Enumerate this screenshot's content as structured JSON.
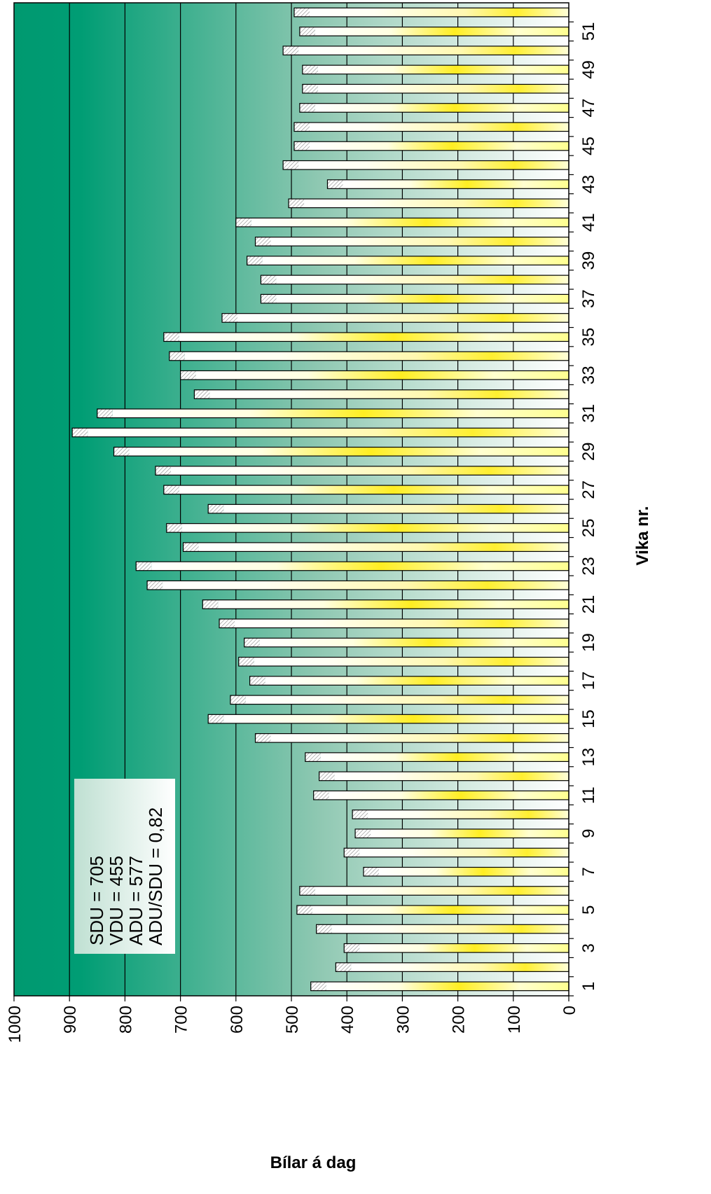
{
  "chart_data": {
    "type": "bar",
    "orientation": "horizontal",
    "xlabel": "Bílar á dag",
    "ylabel": "Vika nr.",
    "xlim": [
      0,
      1000
    ],
    "xticks": [
      "0",
      "100",
      "200",
      "300",
      "400",
      "500",
      "600",
      "700",
      "800",
      "900",
      "1000"
    ],
    "yticks": [
      "1",
      "3",
      "5",
      "7",
      "9",
      "11",
      "13",
      "15",
      "17",
      "19",
      "21",
      "23",
      "25",
      "27",
      "29",
      "31",
      "33",
      "35",
      "37",
      "39",
      "41",
      "43",
      "45",
      "47",
      "49",
      "51"
    ],
    "grid": true,
    "categories": [
      "1",
      "2",
      "3",
      "4",
      "5",
      "6",
      "7",
      "8",
      "9",
      "10",
      "11",
      "12",
      "13",
      "14",
      "15",
      "16",
      "17",
      "18",
      "19",
      "20",
      "21",
      "22",
      "23",
      "24",
      "25",
      "26",
      "27",
      "28",
      "29",
      "30",
      "31",
      "32",
      "33",
      "34",
      "35",
      "36",
      "37",
      "38",
      "39",
      "40",
      "41",
      "42",
      "43",
      "44",
      "45",
      "46",
      "47",
      "48",
      "49",
      "50",
      "51",
      "52"
    ],
    "values": [
      465,
      420,
      405,
      455,
      490,
      485,
      370,
      405,
      385,
      390,
      460,
      450,
      475,
      565,
      650,
      610,
      575,
      595,
      585,
      630,
      660,
      760,
      780,
      695,
      725,
      650,
      730,
      745,
      820,
      895,
      850,
      675,
      700,
      720,
      730,
      625,
      555,
      555,
      580,
      565,
      600,
      505,
      435,
      515,
      495,
      495,
      485,
      480,
      480,
      515,
      485,
      495
    ],
    "annotation": [
      "SDU = 705",
      "VDU = 455",
      "ADU = 577",
      "ADU/SDU = 0,82"
    ],
    "colors": {
      "background_high": "#009970",
      "background_low": "#ffffff",
      "bar_highlight": "#ffee11",
      "bar_base": "#fffff0",
      "annotation_box": "#ffffff",
      "gridline": "#000000"
    }
  }
}
